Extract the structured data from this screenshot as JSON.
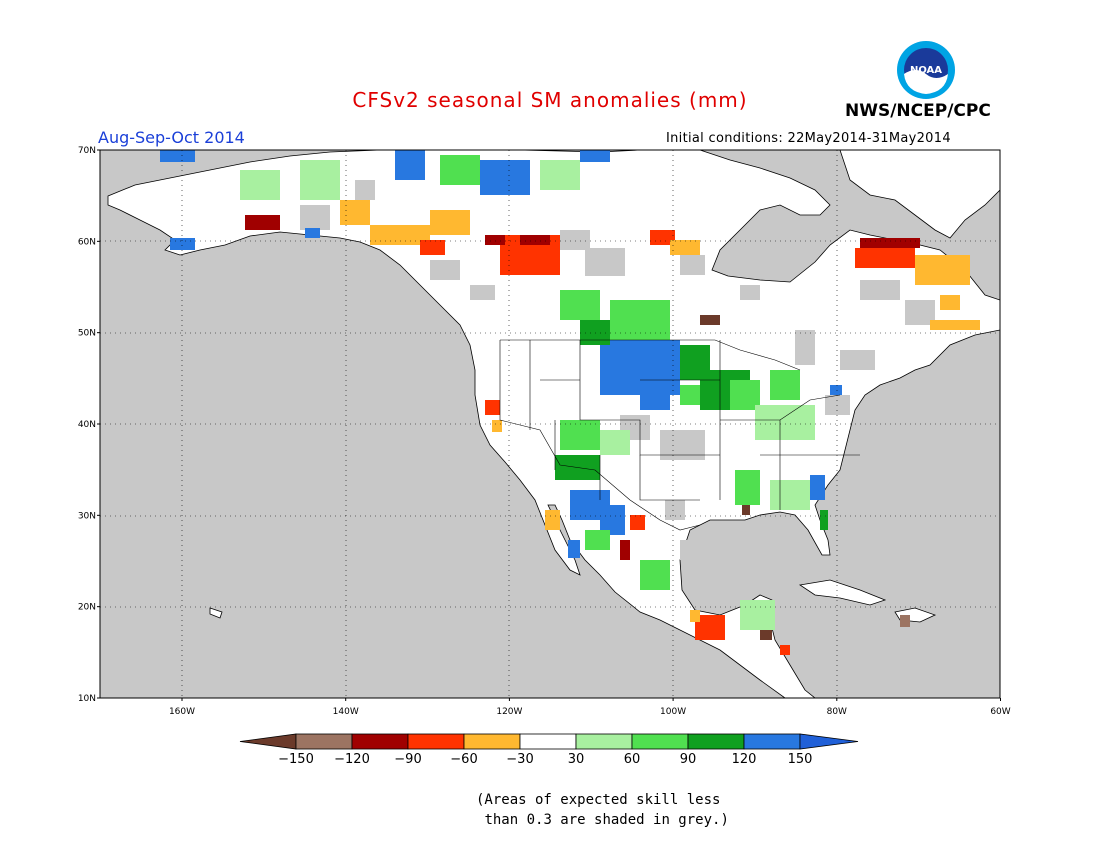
{
  "title": "CFSv2 seasonal SM anomalies (mm)",
  "season": "Aug-Sep-Oct 2014",
  "initial_conditions": "Initial conditions: 22May2014-31May2014",
  "agency": "NWS/NCEP/CPC",
  "logo_text": "NOAA",
  "note_line1": "(Areas of expected skill less",
  "note_line2": "than 0.3 are shaded in grey.)",
  "map": {
    "lon_range": [
      -170,
      -60
    ],
    "lat_range": [
      10,
      70
    ],
    "lat_ticks": [
      "10N",
      "20N",
      "30N",
      "40N",
      "50N",
      "60N",
      "70N"
    ],
    "lon_ticks": [
      "160W",
      "140W",
      "120W",
      "100W",
      "80W",
      "60W"
    ],
    "ocean_color": "#c8c8c8",
    "no_skill_color": "#c8c8c8",
    "land_color": "#ffffff"
  },
  "colorbar": {
    "bins": [
      {
        "color": "#6b3a2a"
      },
      {
        "color": "#9c7462"
      },
      {
        "color": "#a00000"
      },
      {
        "color": "#ff3300"
      },
      {
        "color": "#ffb830"
      },
      {
        "color": "#ffffff"
      },
      {
        "color": "#a8f0a0"
      },
      {
        "color": "#50e050"
      },
      {
        "color": "#10a020"
      },
      {
        "color": "#2878e0"
      },
      {
        "color": "#2060d8"
      }
    ],
    "labels": [
      "−150",
      "−120",
      "−90",
      "−60",
      "−30",
      "30",
      "60",
      "90",
      "120",
      "150"
    ]
  }
}
